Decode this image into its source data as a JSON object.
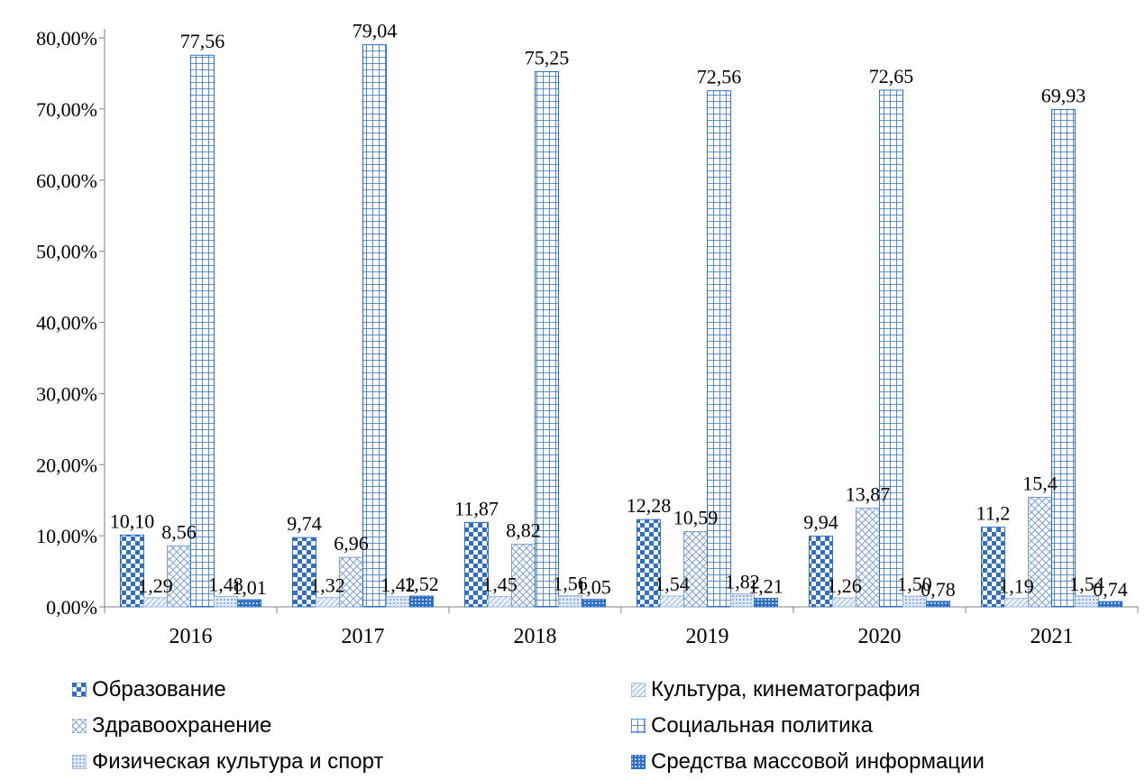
{
  "chart_data": {
    "type": "bar",
    "categories": [
      "2016",
      "2017",
      "2018",
      "2019",
      "2020",
      "2021"
    ],
    "series": [
      {
        "name": "Образование",
        "values": [
          10.1,
          9.74,
          11.87,
          12.28,
          9.94,
          11.2
        ],
        "labels": [
          "10,10",
          "9,74",
          "11,87",
          "12,28",
          "9,94",
          "11,2"
        ],
        "pattern": "checker-blue"
      },
      {
        "name": "Культура, кинематография",
        "values": [
          1.29,
          1.32,
          1.45,
          1.54,
          1.26,
          1.19
        ],
        "labels": [
          "1,29",
          "1,32",
          "1,45",
          "1,54",
          "1,26",
          "1,19"
        ],
        "pattern": "diagonal-light"
      },
      {
        "name": "Здравоохранение",
        "values": [
          8.56,
          6.96,
          8.82,
          10.59,
          13.87,
          15.4
        ],
        "labels": [
          "8,56",
          "6,96",
          "8,82",
          "10,59",
          "13,87",
          "15,4"
        ],
        "pattern": "crosshatch"
      },
      {
        "name": "Социальная политика",
        "values": [
          77.56,
          79.04,
          75.25,
          72.56,
          72.65,
          69.93
        ],
        "labels": [
          "77,56",
          "79,04",
          "75,25",
          "72,56",
          "72,65",
          "69,93"
        ],
        "pattern": "grid-blue"
      },
      {
        "name": "Физическая культура и спорт",
        "values": [
          1.48,
          1.42,
          1.56,
          1.82,
          1.5,
          1.54
        ],
        "labels": [
          "1,48",
          "1,42",
          "1,56",
          "1,82",
          "1,50",
          "1,54"
        ],
        "pattern": "dots-blue"
      },
      {
        "name": "Средства массовой информации",
        "values": [
          1.01,
          1.52,
          1.05,
          1.21,
          0.78,
          0.74
        ],
        "labels": [
          "1,01",
          "1,52",
          "1,05",
          "1,21",
          "0,78",
          "0,74"
        ],
        "pattern": "dense-blue"
      }
    ],
    "y_tick_labels": [
      "0,00%",
      "10,00%",
      "20,00%",
      "30,00%",
      "40,00%",
      "50,00%",
      "60,00%",
      "70,00%",
      "80,00%"
    ],
    "ylim": [
      0,
      80
    ],
    "title": "",
    "xlabel": "",
    "ylabel": "",
    "grid": false,
    "legend_position": "bottom",
    "colors": {
      "primary": "#2e6fc4",
      "light": "#d6e4f5",
      "axis": "#7f7f7f"
    }
  }
}
